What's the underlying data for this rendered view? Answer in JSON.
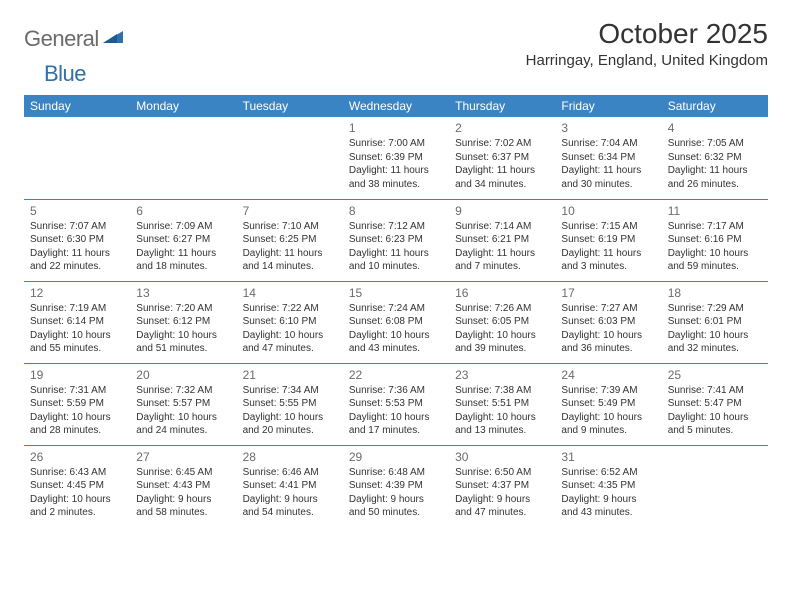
{
  "logo": {
    "general": "General",
    "blue": "Blue"
  },
  "title": "October 2025",
  "location": "Harringay, England, United Kingdom",
  "colors": {
    "header_bg": "#3b84c4",
    "header_fg": "#ffffff",
    "rule": "#3b84c4",
    "text": "#333333",
    "muted": "#6b6b6b",
    "logo_gray": "#6b6b6b",
    "logo_blue": "#2f6fab",
    "page_bg": "#ffffff"
  },
  "typography": {
    "title_fontsize": 28,
    "location_fontsize": 15,
    "dayheader_fontsize": 12,
    "daynum_fontsize": 12,
    "body_fontsize": 10
  },
  "weekdays": [
    "Sunday",
    "Monday",
    "Tuesday",
    "Wednesday",
    "Thursday",
    "Friday",
    "Saturday"
  ],
  "weeks": [
    [
      null,
      null,
      null,
      {
        "n": "1",
        "sunrise": "7:00 AM",
        "sunset": "6:39 PM",
        "daylight": "11 hours and 38 minutes."
      },
      {
        "n": "2",
        "sunrise": "7:02 AM",
        "sunset": "6:37 PM",
        "daylight": "11 hours and 34 minutes."
      },
      {
        "n": "3",
        "sunrise": "7:04 AM",
        "sunset": "6:34 PM",
        "daylight": "11 hours and 30 minutes."
      },
      {
        "n": "4",
        "sunrise": "7:05 AM",
        "sunset": "6:32 PM",
        "daylight": "11 hours and 26 minutes."
      }
    ],
    [
      {
        "n": "5",
        "sunrise": "7:07 AM",
        "sunset": "6:30 PM",
        "daylight": "11 hours and 22 minutes."
      },
      {
        "n": "6",
        "sunrise": "7:09 AM",
        "sunset": "6:27 PM",
        "daylight": "11 hours and 18 minutes."
      },
      {
        "n": "7",
        "sunrise": "7:10 AM",
        "sunset": "6:25 PM",
        "daylight": "11 hours and 14 minutes."
      },
      {
        "n": "8",
        "sunrise": "7:12 AM",
        "sunset": "6:23 PM",
        "daylight": "11 hours and 10 minutes."
      },
      {
        "n": "9",
        "sunrise": "7:14 AM",
        "sunset": "6:21 PM",
        "daylight": "11 hours and 7 minutes."
      },
      {
        "n": "10",
        "sunrise": "7:15 AM",
        "sunset": "6:19 PM",
        "daylight": "11 hours and 3 minutes."
      },
      {
        "n": "11",
        "sunrise": "7:17 AM",
        "sunset": "6:16 PM",
        "daylight": "10 hours and 59 minutes."
      }
    ],
    [
      {
        "n": "12",
        "sunrise": "7:19 AM",
        "sunset": "6:14 PM",
        "daylight": "10 hours and 55 minutes."
      },
      {
        "n": "13",
        "sunrise": "7:20 AM",
        "sunset": "6:12 PM",
        "daylight": "10 hours and 51 minutes."
      },
      {
        "n": "14",
        "sunrise": "7:22 AM",
        "sunset": "6:10 PM",
        "daylight": "10 hours and 47 minutes."
      },
      {
        "n": "15",
        "sunrise": "7:24 AM",
        "sunset": "6:08 PM",
        "daylight": "10 hours and 43 minutes."
      },
      {
        "n": "16",
        "sunrise": "7:26 AM",
        "sunset": "6:05 PM",
        "daylight": "10 hours and 39 minutes."
      },
      {
        "n": "17",
        "sunrise": "7:27 AM",
        "sunset": "6:03 PM",
        "daylight": "10 hours and 36 minutes."
      },
      {
        "n": "18",
        "sunrise": "7:29 AM",
        "sunset": "6:01 PM",
        "daylight": "10 hours and 32 minutes."
      }
    ],
    [
      {
        "n": "19",
        "sunrise": "7:31 AM",
        "sunset": "5:59 PM",
        "daylight": "10 hours and 28 minutes."
      },
      {
        "n": "20",
        "sunrise": "7:32 AM",
        "sunset": "5:57 PM",
        "daylight": "10 hours and 24 minutes."
      },
      {
        "n": "21",
        "sunrise": "7:34 AM",
        "sunset": "5:55 PM",
        "daylight": "10 hours and 20 minutes."
      },
      {
        "n": "22",
        "sunrise": "7:36 AM",
        "sunset": "5:53 PM",
        "daylight": "10 hours and 17 minutes."
      },
      {
        "n": "23",
        "sunrise": "7:38 AM",
        "sunset": "5:51 PM",
        "daylight": "10 hours and 13 minutes."
      },
      {
        "n": "24",
        "sunrise": "7:39 AM",
        "sunset": "5:49 PM",
        "daylight": "10 hours and 9 minutes."
      },
      {
        "n": "25",
        "sunrise": "7:41 AM",
        "sunset": "5:47 PM",
        "daylight": "10 hours and 5 minutes."
      }
    ],
    [
      {
        "n": "26",
        "sunrise": "6:43 AM",
        "sunset": "4:45 PM",
        "daylight": "10 hours and 2 minutes."
      },
      {
        "n": "27",
        "sunrise": "6:45 AM",
        "sunset": "4:43 PM",
        "daylight": "9 hours and 58 minutes."
      },
      {
        "n": "28",
        "sunrise": "6:46 AM",
        "sunset": "4:41 PM",
        "daylight": "9 hours and 54 minutes."
      },
      {
        "n": "29",
        "sunrise": "6:48 AM",
        "sunset": "4:39 PM",
        "daylight": "9 hours and 50 minutes."
      },
      {
        "n": "30",
        "sunrise": "6:50 AM",
        "sunset": "4:37 PM",
        "daylight": "9 hours and 47 minutes."
      },
      {
        "n": "31",
        "sunrise": "6:52 AM",
        "sunset": "4:35 PM",
        "daylight": "9 hours and 43 minutes."
      },
      null
    ]
  ],
  "labels": {
    "sunrise": "Sunrise: ",
    "sunset": "Sunset: ",
    "daylight": "Daylight: "
  }
}
